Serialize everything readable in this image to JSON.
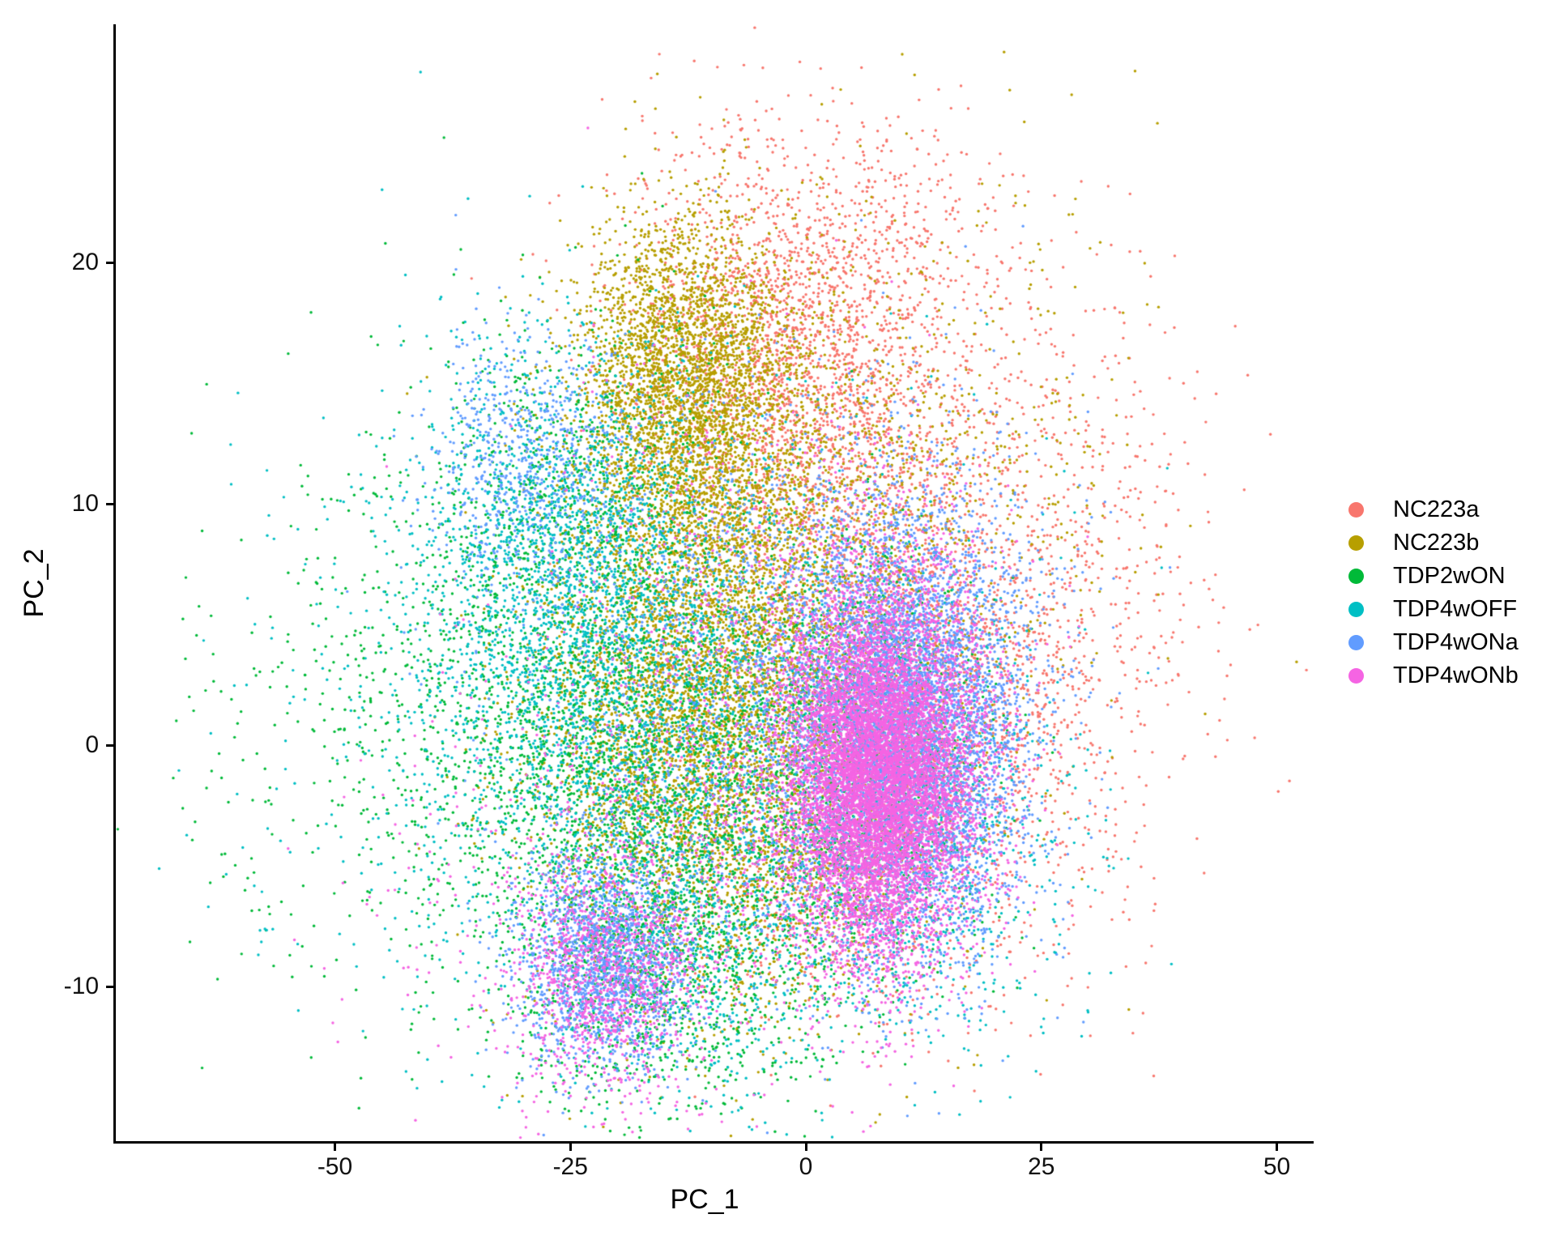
{
  "chart_data": {
    "type": "scatter",
    "title": "",
    "xlabel": "PC_1",
    "ylabel": "PC_2",
    "xlim": [
      -73,
      54
    ],
    "ylim": [
      -16.5,
      30
    ],
    "x_ticks": [
      -50,
      -25,
      0,
      25,
      50
    ],
    "y_ticks": [
      20,
      10,
      0,
      -10
    ],
    "grid": false,
    "legend_position": "right",
    "point_radius_px": 1.7,
    "axis_color": "#000000",
    "background_color": "#ffffff",
    "series": [
      {
        "name": "NC223a",
        "color": "#F8766D",
        "clusters": [
          {
            "x": -2,
            "y": 16,
            "sx": 8.5,
            "sy": 4.2,
            "n": 1700
          },
          {
            "x": 8,
            "y": 10,
            "sx": 10,
            "sy": 5,
            "n": 1100
          },
          {
            "x": 19,
            "y": 2,
            "sx": 8,
            "sy": 5,
            "n": 900
          },
          {
            "x": 2,
            "y": 21,
            "sx": 11,
            "sy": 3.5,
            "n": 450
          },
          {
            "x": 30,
            "y": 7,
            "sx": 8,
            "sy": 6,
            "n": 350
          },
          {
            "x": 8,
            "y": -2,
            "sx": 12,
            "sy": 5,
            "n": 550
          },
          {
            "x": 2,
            "y": -6,
            "sx": 6,
            "sy": 2.5,
            "n": 250
          }
        ]
      },
      {
        "name": "NC223b",
        "color": "#B79F00",
        "clusters": [
          {
            "x": -13,
            "y": 15.5,
            "sx": 5.5,
            "sy": 3.3,
            "n": 2500
          },
          {
            "x": -10,
            "y": 9,
            "sx": 8,
            "sy": 5,
            "n": 2400
          },
          {
            "x": -13,
            "y": 0,
            "sx": 8,
            "sy": 4.5,
            "n": 2700
          },
          {
            "x": 2,
            "y": 5,
            "sx": 10,
            "sy": 6.5,
            "n": 1300
          },
          {
            "x": -5,
            "y": -5,
            "sx": 9,
            "sy": 3.5,
            "n": 700
          },
          {
            "x": 12,
            "y": 12,
            "sx": 12,
            "sy": 6,
            "n": 500
          }
        ]
      },
      {
        "name": "TDP2wON",
        "color": "#00BA38",
        "clusters": [
          {
            "x": -27,
            "y": 3,
            "sx": 10,
            "sy": 6,
            "n": 1400
          },
          {
            "x": -14,
            "y": -2.5,
            "sx": 9,
            "sy": 5,
            "n": 1600
          },
          {
            "x": 5,
            "y": -1,
            "sx": 7,
            "sy": 4.5,
            "n": 1200
          },
          {
            "x": -45,
            "y": 0,
            "sx": 12,
            "sy": 6,
            "n": 350
          },
          {
            "x": -16,
            "y": -10,
            "sx": 8,
            "sy": 3,
            "n": 750
          },
          {
            "x": -24,
            "y": 10,
            "sx": 8,
            "sy": 4,
            "n": 500
          }
        ]
      },
      {
        "name": "TDP4wOFF",
        "color": "#00BFC4",
        "clusters": [
          {
            "x": -26,
            "y": 8,
            "sx": 8,
            "sy": 4.5,
            "n": 1400
          },
          {
            "x": -20,
            "y": 1.5,
            "sx": 10,
            "sy": 5.5,
            "n": 1400
          },
          {
            "x": 12,
            "y": -3,
            "sx": 7.5,
            "sy": 4.5,
            "n": 1000
          },
          {
            "x": -36,
            "y": 0,
            "sx": 13,
            "sy": 7,
            "n": 450
          },
          {
            "x": -12,
            "y": -8,
            "sx": 8,
            "sy": 3.5,
            "n": 650
          },
          {
            "x": -2,
            "y": 3,
            "sx": 12,
            "sy": 6,
            "n": 550
          }
        ]
      },
      {
        "name": "TDP4wONa",
        "color": "#619CFF",
        "clusters": [
          {
            "x": 10,
            "y": 0.5,
            "sx": 6,
            "sy": 4.3,
            "n": 5200
          },
          {
            "x": -21.5,
            "y": -9,
            "sx": 4.5,
            "sy": 2.2,
            "n": 1600
          },
          {
            "x": -29,
            "y": 11.5,
            "sx": 5.5,
            "sy": 2.8,
            "n": 700
          },
          {
            "x": -8,
            "y": 2,
            "sx": 11,
            "sy": 6,
            "n": 1100
          },
          {
            "x": 13,
            "y": 3,
            "sx": 8.5,
            "sy": 5.5,
            "n": 900
          }
        ]
      },
      {
        "name": "TDP4wONb",
        "color": "#F564E3",
        "clusters": [
          {
            "x": 7.5,
            "y": -1.5,
            "sx": 4.7,
            "sy": 3.5,
            "n": 7500
          },
          {
            "x": 9,
            "y": 0.5,
            "sx": 6.5,
            "sy": 4.6,
            "n": 1800
          },
          {
            "x": -21,
            "y": -9.5,
            "sx": 5,
            "sy": 2.4,
            "n": 1200
          },
          {
            "x": -8,
            "y": 1,
            "sx": 11,
            "sy": 6.5,
            "n": 800
          },
          {
            "x": -30,
            "y": -5,
            "sx": 10,
            "sy": 5,
            "n": 150
          }
        ]
      }
    ]
  }
}
